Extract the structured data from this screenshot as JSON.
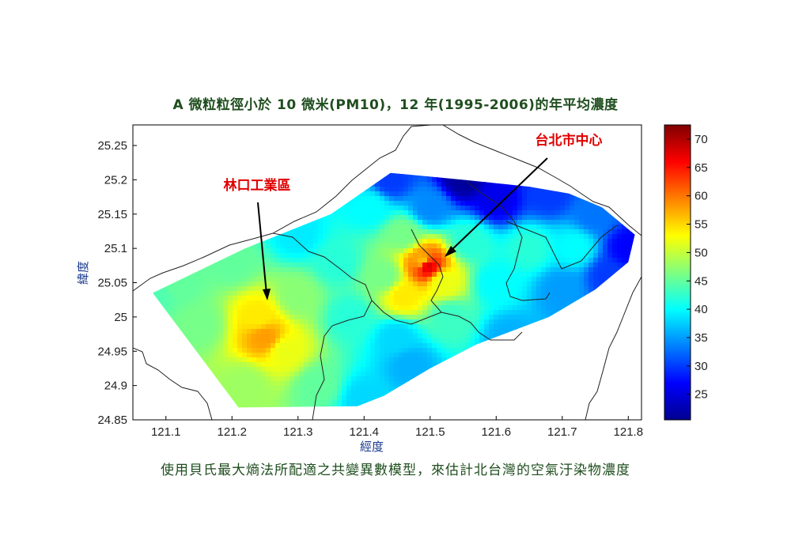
{
  "title": "A  微粒粒徑小於 10 微米(PM10)，12 年(1995-2006)的年平均濃度",
  "caption": "使用貝氏最大熵法所配適之共變異數模型，來估計北台灣的空氣汙染物濃度",
  "axes": {
    "xlabel": "經度",
    "ylabel": "緯度",
    "xticks": [
      "121.1",
      "121.2",
      "121.3",
      "121.4",
      "121.5",
      "121.6",
      "121.7",
      "121.8"
    ],
    "yticks": [
      "25.25",
      "25.2",
      "25.15",
      "25.1",
      "25.05",
      "25",
      "24.95",
      "24.9",
      "24.85"
    ],
    "xlim": [
      121.05,
      121.82
    ],
    "ylim": [
      24.85,
      25.28
    ]
  },
  "colorbar": {
    "ticks": [
      "70",
      "65",
      "60",
      "55",
      "50",
      "45",
      "40",
      "35",
      "30",
      "25"
    ],
    "range": [
      20.5,
      72.5
    ],
    "colormap": "jet"
  },
  "annotations": [
    {
      "text": "林口工業區",
      "lon": 121.24,
      "lat": 25.03,
      "color": "#e00000"
    },
    {
      "text": "台北市中心",
      "lon": 121.505,
      "lat": 25.1,
      "color": "#e00000"
    }
  ],
  "chart_data": {
    "type": "heatmap",
    "title": "A  微粒粒徑小於 10 微米(PM10)，12 年(1995-2006)的年平均濃度",
    "xlabel": "經度",
    "ylabel": "緯度",
    "xlim": [
      121.05,
      121.82
    ],
    "ylim": [
      24.85,
      25.28
    ],
    "value_range": [
      20.5,
      72.5
    ],
    "domain_polygon": [
      [
        121.08,
        25.035
      ],
      [
        121.22,
        25.1
      ],
      [
        121.35,
        25.15
      ],
      [
        121.44,
        25.21
      ],
      [
        121.55,
        25.2
      ],
      [
        121.65,
        25.19
      ],
      [
        121.71,
        25.18
      ],
      [
        121.76,
        25.16
      ],
      [
        121.81,
        25.12
      ],
      [
        121.8,
        25.08
      ],
      [
        121.75,
        25.04
      ],
      [
        121.68,
        25.0
      ],
      [
        121.57,
        24.96
      ],
      [
        121.5,
        24.925
      ],
      [
        121.43,
        24.885
      ],
      [
        121.39,
        24.87
      ],
      [
        121.21,
        24.868
      ]
    ],
    "control_points": [
      {
        "lon": 121.08,
        "lat": 25.035,
        "value": 44
      },
      {
        "lon": 121.12,
        "lat": 25.05,
        "value": 45
      },
      {
        "lon": 121.15,
        "lat": 24.99,
        "value": 46
      },
      {
        "lon": 121.2,
        "lat": 25.08,
        "value": 45
      },
      {
        "lon": 121.22,
        "lat": 24.9,
        "value": 48
      },
      {
        "lon": 121.25,
        "lat": 24.97,
        "value": 58
      },
      {
        "lon": 121.24,
        "lat": 25.0,
        "value": 54
      },
      {
        "lon": 121.28,
        "lat": 24.95,
        "value": 52
      },
      {
        "lon": 121.3,
        "lat": 25.03,
        "value": 47
      },
      {
        "lon": 121.3,
        "lat": 25.12,
        "value": 39
      },
      {
        "lon": 121.33,
        "lat": 24.9,
        "value": 45
      },
      {
        "lon": 121.36,
        "lat": 25.08,
        "value": 42
      },
      {
        "lon": 121.38,
        "lat": 25.0,
        "value": 42
      },
      {
        "lon": 121.4,
        "lat": 24.88,
        "value": 38
      },
      {
        "lon": 121.41,
        "lat": 25.16,
        "value": 40
      },
      {
        "lon": 121.43,
        "lat": 25.06,
        "value": 46
      },
      {
        "lon": 121.44,
        "lat": 25.2,
        "value": 30
      },
      {
        "lon": 121.45,
        "lat": 24.97,
        "value": 38
      },
      {
        "lon": 121.46,
        "lat": 25.12,
        "value": 46
      },
      {
        "lon": 121.46,
        "lat": 25.03,
        "value": 54
      },
      {
        "lon": 121.47,
        "lat": 24.93,
        "value": 36
      },
      {
        "lon": 121.49,
        "lat": 25.08,
        "value": 56
      },
      {
        "lon": 121.495,
        "lat": 25.075,
        "value": 68
      },
      {
        "lon": 121.5,
        "lat": 25.16,
        "value": 34
      },
      {
        "lon": 121.52,
        "lat": 25.05,
        "value": 52
      },
      {
        "lon": 121.53,
        "lat": 25.0,
        "value": 43
      },
      {
        "lon": 121.55,
        "lat": 25.2,
        "value": 22
      },
      {
        "lon": 121.56,
        "lat": 25.11,
        "value": 42
      },
      {
        "lon": 121.6,
        "lat": 25.17,
        "value": 26
      },
      {
        "lon": 121.6,
        "lat": 25.05,
        "value": 40
      },
      {
        "lon": 121.62,
        "lat": 24.97,
        "value": 36
      },
      {
        "lon": 121.65,
        "lat": 25.1,
        "value": 42
      },
      {
        "lon": 121.68,
        "lat": 25.18,
        "value": 30
      },
      {
        "lon": 121.7,
        "lat": 25.04,
        "value": 35
      },
      {
        "lon": 121.72,
        "lat": 25.1,
        "value": 40
      },
      {
        "lon": 121.75,
        "lat": 25.15,
        "value": 33
      },
      {
        "lon": 121.77,
        "lat": 25.06,
        "value": 30
      },
      {
        "lon": 121.8,
        "lat": 25.1,
        "value": 27
      }
    ]
  }
}
